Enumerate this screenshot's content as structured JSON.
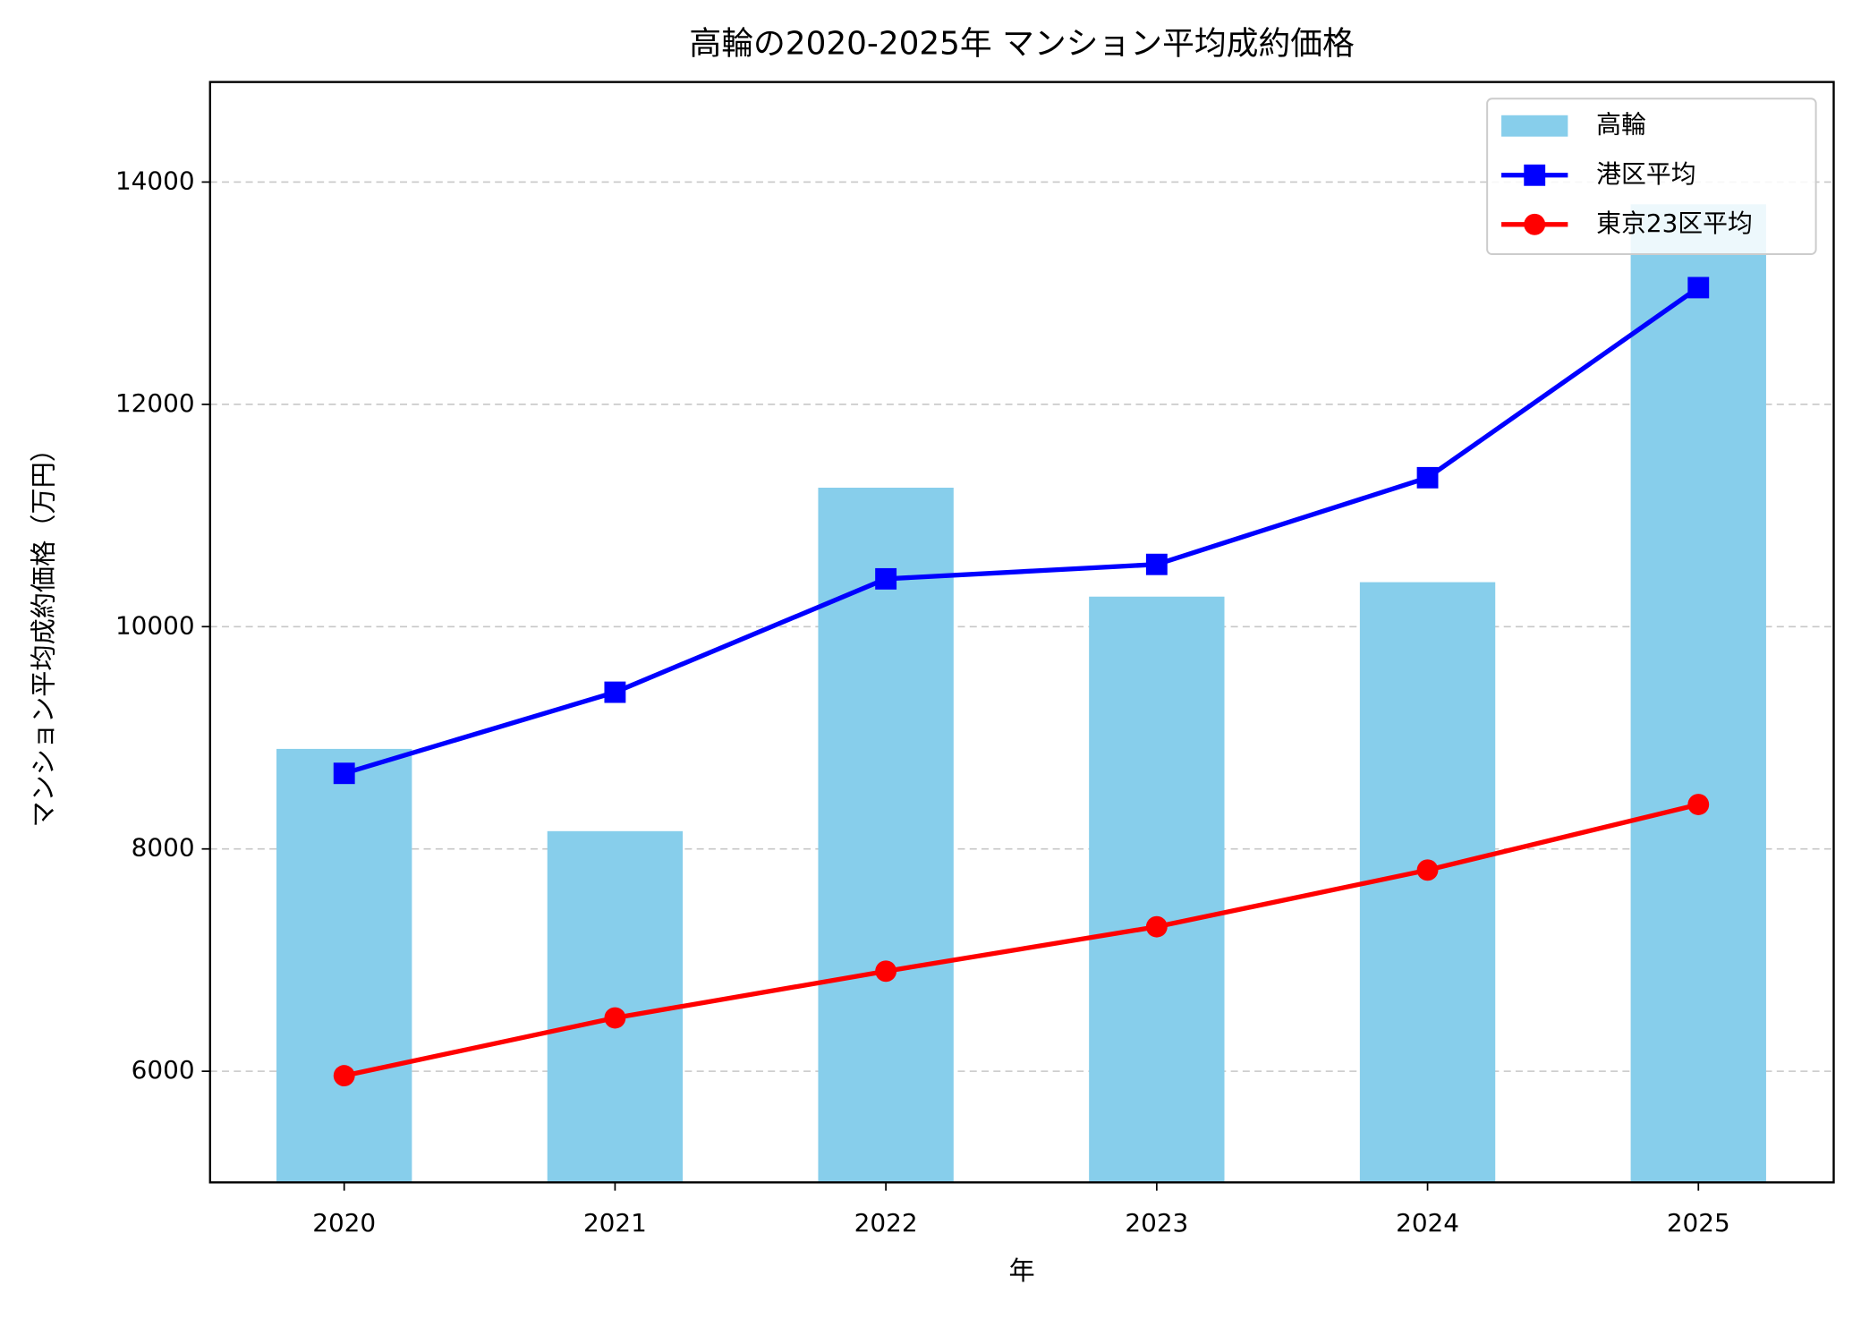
{
  "chart_data": {
    "type": "bar_line",
    "title": "高輪の2020-2025年 マンション平均成約価格",
    "x_label": "年",
    "y_label": "マンション平均成約価格（万円）",
    "categories": [
      "2020",
      "2021",
      "2022",
      "2023",
      "2024",
      "2025"
    ],
    "series": [
      {
        "name": "高輪",
        "type": "bar",
        "color": "#87ceeb",
        "values": [
          8900,
          8160,
          11250,
          10270,
          10400,
          13800
        ]
      },
      {
        "name": "港区平均",
        "type": "line",
        "marker": "square",
        "color": "#0000ff",
        "values": [
          8680,
          9410,
          10430,
          10560,
          11340,
          13050
        ]
      },
      {
        "name": "東京23区平均",
        "type": "line",
        "marker": "circle",
        "color": "#ff0000",
        "values": [
          5960,
          6480,
          6900,
          7300,
          7810,
          8400
        ]
      }
    ],
    "ylim": [
      5000,
      14900
    ],
    "yticks": [
      6000,
      8000,
      10000,
      12000,
      14000
    ],
    "grid": true,
    "legend": "upper-right"
  }
}
